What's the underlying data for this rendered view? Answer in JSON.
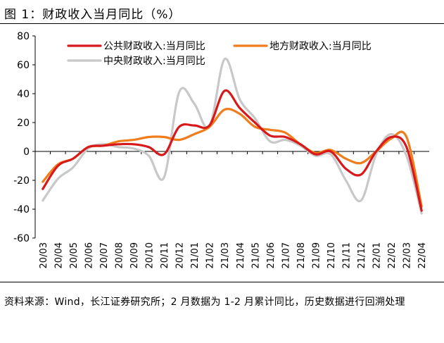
{
  "chart_data": {
    "type": "line",
    "title": "图 1：财政收入当月同比（%）",
    "xlabel": "",
    "ylabel": "",
    "ylim": [
      -60,
      80
    ],
    "yticks": [
      -60,
      -40,
      -20,
      0,
      20,
      40,
      60,
      80
    ],
    "grid": false,
    "legend": "top",
    "categories": [
      "20/03",
      "20/04",
      "20/05",
      "20/06",
      "20/07",
      "20/08",
      "20/09",
      "20/10",
      "20/11",
      "20/12",
      "21/01",
      "21/02",
      "21/03",
      "21/04",
      "21/05",
      "21/06",
      "21/07",
      "21/08",
      "21/09",
      "21/10",
      "21/11",
      "21/12",
      "22/01",
      "22/02",
      "22/03",
      "22/04"
    ],
    "series": [
      {
        "name": "公共财政收入:当月同比",
        "color": "#d7191c",
        "values": [
          -26,
          -10,
          -5,
          3,
          4,
          5,
          5,
          3,
          -2,
          17,
          18,
          18,
          42,
          30,
          20,
          11,
          10,
          5,
          -2,
          0,
          -12,
          -16,
          0,
          10,
          3,
          -41
        ]
      },
      {
        "name": "地方财政收入:当月同比",
        "color": "#f07d1b",
        "values": [
          -21,
          -9,
          -5,
          3,
          4,
          7,
          8,
          10,
          10,
          8,
          12,
          17,
          29,
          26,
          17,
          15,
          13,
          5,
          -1,
          1,
          -5,
          -8,
          0,
          9,
          10,
          -38
        ]
      },
      {
        "name": "中央财政收入:当月同比",
        "color": "#c8c8c8",
        "values": [
          -34,
          -19,
          -11,
          2,
          5,
          3,
          2,
          -3,
          -18,
          41,
          33,
          17,
          64,
          36,
          23,
          7,
          8,
          4,
          -3,
          -2,
          -20,
          -34,
          -2,
          12,
          -3,
          -43
        ]
      }
    ]
  },
  "source_note": "资料来源：Wind，长江证券研究所；2 月数据为 1-2 月累计同比，历史数据进行回溯处理"
}
